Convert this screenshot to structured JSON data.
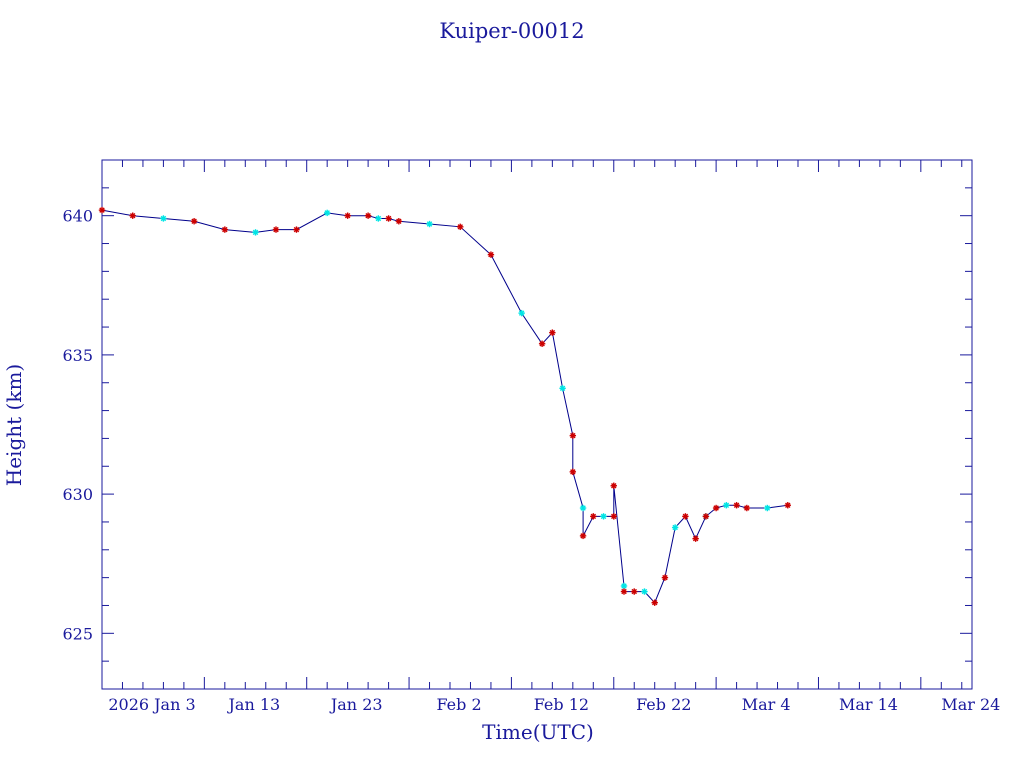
{
  "chart_data": {
    "type": "line",
    "title": "Kuiper-00012",
    "xlabel": "Time(UTC)",
    "ylabel": "Height (km)",
    "ylim": [
      623,
      642
    ],
    "xlim": [
      "2026-01-03",
      "2026-03-29"
    ],
    "grid": false,
    "yticks": [
      625,
      630,
      635,
      640
    ],
    "ytick_labels": [
      "625",
      "630",
      "635",
      "640"
    ],
    "xticks": [
      "2026-01-03",
      "2026-01-13",
      "2026-01-23",
      "2026-02-02",
      "2026-02-12",
      "2026-02-22",
      "2026-03-04",
      "2026-03-14",
      "2026-03-24"
    ],
    "xtick_labels": [
      "2026 Jan  3",
      "Jan 13",
      "Jan 23",
      "Feb  2",
      "Feb 12",
      "Feb 22",
      "Mar  4",
      "Mar 14",
      "Mar 24"
    ],
    "colors": {
      "axis": "#1a1a9c",
      "line": "#00008b",
      "primary_marker": "#cc0000",
      "secondary_marker": "#00e5e5"
    },
    "series": [
      {
        "x": [
          "2026-01-03",
          "2026-01-06",
          "2026-01-09",
          "2026-01-12",
          "2026-01-15",
          "2026-01-18",
          "2026-01-20",
          "2026-01-22",
          "2026-01-25",
          "2026-01-27",
          "2026-01-29",
          "2026-01-30",
          "2026-01-31",
          "2026-02-01",
          "2026-02-04",
          "2026-02-07",
          "2026-02-10",
          "2026-02-13",
          "2026-02-15",
          "2026-02-16",
          "2026-02-17",
          "2026-02-18",
          "2026-02-18",
          "2026-02-19",
          "2026-02-19",
          "2026-02-20",
          "2026-02-21",
          "2026-02-22",
          "2026-02-22",
          "2026-02-23",
          "2026-02-23",
          "2026-02-24",
          "2026-02-25",
          "2026-02-26",
          "2026-02-27",
          "2026-02-28",
          "2026-03-01",
          "2026-03-02",
          "2026-03-03",
          "2026-03-03",
          "2026-03-04",
          "2026-03-05",
          "2026-03-06",
          "2026-03-07",
          "2026-03-09",
          "2026-03-11"
        ],
        "y": [
          640.2,
          640.0,
          639.9,
          639.8,
          639.5,
          639.4,
          639.5,
          639.5,
          640.1,
          640.0,
          640.0,
          639.9,
          639.9,
          639.8,
          639.7,
          639.6,
          638.6,
          636.5,
          635.4,
          635.8,
          633.8,
          632.1,
          630.8,
          629.5,
          628.5,
          629.2,
          629.2,
          629.2,
          630.3,
          626.7,
          626.5,
          626.5,
          626.5,
          626.1,
          627.0,
          628.8,
          629.2,
          628.4,
          629.2,
          629.2,
          629.5,
          629.6,
          629.6,
          629.5,
          629.5,
          629.6
        ]
      }
    ]
  }
}
